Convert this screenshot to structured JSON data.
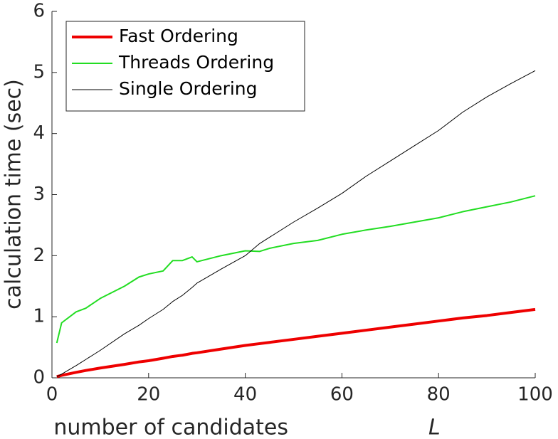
{
  "chart_data": {
    "type": "line",
    "x_label": "number of candidates",
    "x_label_symbol": "L",
    "y_label": "calculation time (sec)",
    "x": [
      1,
      2,
      5,
      7,
      10,
      15,
      18,
      20,
      23,
      25,
      27,
      29,
      30,
      35,
      40,
      43,
      45,
      50,
      55,
      60,
      65,
      70,
      75,
      80,
      85,
      90,
      95,
      100
    ],
    "series": [
      {
        "name": "Fast Ordering",
        "color": "#ee0000",
        "line_width": 4,
        "values": [
          0.02,
          0.04,
          0.09,
          0.12,
          0.16,
          0.22,
          0.26,
          0.28,
          0.32,
          0.35,
          0.37,
          0.4,
          0.41,
          0.47,
          0.53,
          0.56,
          0.58,
          0.63,
          0.68,
          0.73,
          0.78,
          0.83,
          0.88,
          0.93,
          0.98,
          1.02,
          1.07,
          1.12
        ]
      },
      {
        "name": "Threads Ordering",
        "color": "#22dd22",
        "line_width": 2,
        "values": [
          0.57,
          0.9,
          1.08,
          1.14,
          1.3,
          1.5,
          1.65,
          1.7,
          1.75,
          1.92,
          1.92,
          1.98,
          1.9,
          2.0,
          2.08,
          2.07,
          2.12,
          2.2,
          2.25,
          2.35,
          2.42,
          2.48,
          2.55,
          2.62,
          2.72,
          2.8,
          2.88,
          2.98
        ]
      },
      {
        "name": "Single Ordering",
        "color": "#000000",
        "line_width": 1,
        "values": [
          0.02,
          0.06,
          0.2,
          0.3,
          0.45,
          0.72,
          0.86,
          0.97,
          1.12,
          1.25,
          1.35,
          1.48,
          1.55,
          1.78,
          2.0,
          2.2,
          2.3,
          2.55,
          2.78,
          3.02,
          3.3,
          3.55,
          3.8,
          4.05,
          4.35,
          4.6,
          4.82,
          5.03
        ]
      }
    ],
    "xlim": [
      0,
      100
    ],
    "xticks": [
      0,
      20,
      40,
      60,
      80,
      100
    ],
    "ylim": [
      0,
      6
    ],
    "yticks": [
      0,
      1,
      2,
      3,
      4,
      5,
      6
    ],
    "legend": "upper-left"
  }
}
